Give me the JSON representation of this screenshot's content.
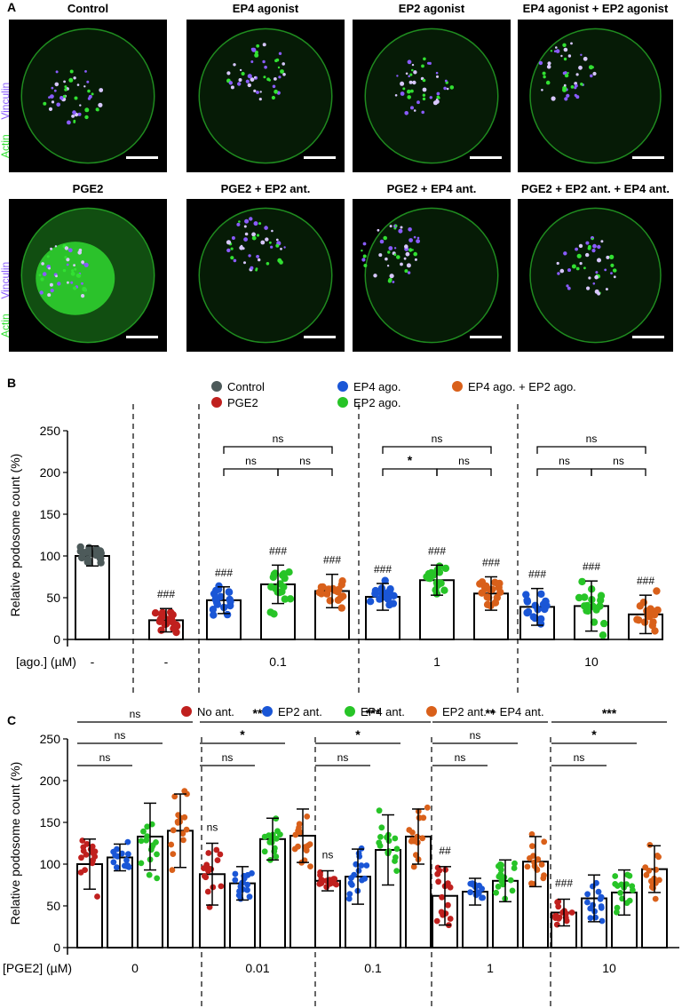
{
  "panelA": {
    "letter": "A",
    "stain_top": "Vinculin",
    "stain_bottom": "Actin",
    "row1": [
      "Control",
      "EP4 agonist",
      "EP2 agonist",
      "EP4 agonist + EP2 agonist"
    ],
    "row2": [
      "PGE2",
      "PGE2 + EP2 ant.",
      "PGE2 + EP4 ant.",
      "PGE2 + EP2 ant. + EP4 ant."
    ],
    "colors": {
      "vinculin": "#8a5cff",
      "actin": "#32e032"
    }
  },
  "chart_data": [
    {
      "panel": "B",
      "type": "bar",
      "ylabel": "Relative podosome count (%)",
      "xlabel": "[ago.] (µM)",
      "ylim": [
        0,
        250
      ],
      "yticks": [
        0,
        50,
        100,
        150,
        200,
        250
      ],
      "legend": [
        {
          "name": "Control",
          "color": "#4d5a5a"
        },
        {
          "name": "PGE2",
          "color": "#c0201e"
        },
        {
          "name": "EP4 ago.",
          "color": "#1a56d6"
        },
        {
          "name": "EP2 ago.",
          "color": "#27c427"
        },
        {
          "name": "EP4 ago. + EP2 ago.",
          "color": "#d9601a"
        }
      ],
      "groups": [
        {
          "label": "-",
          "bars": [
            {
              "series": "Control",
              "mean": 100,
              "sd": 12,
              "sig": ""
            }
          ]
        },
        {
          "label": "-",
          "bars": [
            {
              "series": "PGE2",
              "mean": 23,
              "sd": 14,
              "sig": "###"
            }
          ]
        },
        {
          "label": "0.1",
          "bars": [
            {
              "series": "EP4 ago.",
              "mean": 47,
              "sd": 16,
              "sig": "###"
            },
            {
              "series": "EP2 ago.",
              "mean": 66,
              "sd": 23,
              "sig": "###"
            },
            {
              "series": "EP4 ago. + EP2 ago.",
              "mean": 58,
              "sd": 20,
              "sig": "###"
            }
          ],
          "brackets": [
            [
              "ns",
              0,
              1
            ],
            [
              "ns",
              1,
              2
            ],
            [
              "ns",
              0,
              2
            ]
          ]
        },
        {
          "label": "1",
          "bars": [
            {
              "series": "EP4 ago.",
              "mean": 51,
              "sd": 16,
              "sig": "###"
            },
            {
              "series": "EP2 ago.",
              "mean": 71,
              "sd": 18,
              "sig": "###"
            },
            {
              "series": "EP4 ago. + EP2 ago.",
              "mean": 55,
              "sd": 20,
              "sig": "###"
            }
          ],
          "brackets": [
            [
              "*",
              0,
              1
            ],
            [
              "ns",
              1,
              2
            ],
            [
              "ns",
              0,
              2
            ]
          ]
        },
        {
          "label": "10",
          "bars": [
            {
              "series": "EP4 ago.",
              "mean": 39,
              "sd": 22,
              "sig": "###"
            },
            {
              "series": "EP2 ago.",
              "mean": 40,
              "sd": 30,
              "sig": "###"
            },
            {
              "series": "EP4 ago. + EP2 ago.",
              "mean": 30,
              "sd": 23,
              "sig": "###"
            }
          ],
          "brackets": [
            [
              "ns",
              0,
              1
            ],
            [
              "ns",
              1,
              2
            ],
            [
              "ns",
              0,
              2
            ]
          ]
        }
      ]
    },
    {
      "panel": "C",
      "type": "bar",
      "ylabel": "Relative podosome count (%)",
      "xlabel": "[PGE2] (µM)",
      "ylim": [
        0,
        250
      ],
      "yticks": [
        0,
        50,
        100,
        150,
        200,
        250
      ],
      "legend": [
        {
          "name": "No ant.",
          "color": "#c0201e"
        },
        {
          "name": "EP2 ant.",
          "color": "#1a56d6"
        },
        {
          "name": "EP4 ant.",
          "color": "#27c427"
        },
        {
          "name": "EP2 ant. + EP4 ant.",
          "color": "#d9601a"
        }
      ],
      "groups": [
        {
          "label": "0",
          "bars": [
            {
              "series": "No ant.",
              "mean": 100,
              "sd": 30,
              "sig": ""
            },
            {
              "series": "EP2 ant.",
              "mean": 108,
              "sd": 16,
              "sig": ""
            },
            {
              "series": "EP4 ant.",
              "mean": 133,
              "sd": 40,
              "sig": ""
            },
            {
              "series": "EP2 ant. + EP4 ant.",
              "mean": 140,
              "sd": 44,
              "sig": ""
            }
          ],
          "brackets": [
            [
              "ns",
              0,
              1
            ],
            [
              "ns",
              0,
              2
            ],
            [
              "ns",
              0,
              3
            ]
          ]
        },
        {
          "label": "0.01",
          "bars": [
            {
              "series": "No ant.",
              "mean": 88,
              "sd": 37,
              "sig": "ns"
            },
            {
              "series": "EP2 ant.",
              "mean": 77,
              "sd": 20,
              "sig": ""
            },
            {
              "series": "EP4 ant.",
              "mean": 130,
              "sd": 25,
              "sig": ""
            },
            {
              "series": "EP2 ant. + EP4 ant.",
              "mean": 134,
              "sd": 32,
              "sig": ""
            }
          ],
          "brackets": [
            [
              "ns",
              0,
              1
            ],
            [
              "*",
              0,
              2
            ],
            [
              "**",
              0,
              3
            ]
          ]
        },
        {
          "label": "0.1",
          "bars": [
            {
              "series": "No ant.",
              "mean": 80,
              "sd": 12,
              "sig": "ns"
            },
            {
              "series": "EP2 ant.",
              "mean": 85,
              "sd": 33,
              "sig": ""
            },
            {
              "series": "EP4 ant.",
              "mean": 117,
              "sd": 42,
              "sig": ""
            },
            {
              "series": "EP2 ant. + EP4 ant.",
              "mean": 133,
              "sd": 33,
              "sig": ""
            }
          ],
          "brackets": [
            [
              "ns",
              0,
              1
            ],
            [
              "*",
              0,
              2
            ],
            [
              "***",
              0,
              3
            ]
          ]
        },
        {
          "label": "1",
          "bars": [
            {
              "series": "No ant.",
              "mean": 62,
              "sd": 35,
              "sig": "##"
            },
            {
              "series": "EP2 ant.",
              "mean": 67,
              "sd": 16,
              "sig": ""
            },
            {
              "series": "EP4 ant.",
              "mean": 80,
              "sd": 25,
              "sig": ""
            },
            {
              "series": "EP2 ant. + EP4 ant.",
              "mean": 103,
              "sd": 30,
              "sig": ""
            }
          ],
          "brackets": [
            [
              "ns",
              0,
              1
            ],
            [
              "ns",
              0,
              2
            ],
            [
              "**",
              0,
              3
            ]
          ]
        },
        {
          "label": "10",
          "bars": [
            {
              "series": "No ant.",
              "mean": 42,
              "sd": 16,
              "sig": "###"
            },
            {
              "series": "EP2 ant.",
              "mean": 59,
              "sd": 28,
              "sig": ""
            },
            {
              "series": "EP4 ant.",
              "mean": 66,
              "sd": 27,
              "sig": ""
            },
            {
              "series": "EP2 ant. + EP4 ant.",
              "mean": 94,
              "sd": 28,
              "sig": ""
            }
          ],
          "brackets": [
            [
              "ns",
              0,
              1
            ],
            [
              "*",
              0,
              2
            ],
            [
              "***",
              0,
              3
            ]
          ]
        }
      ]
    }
  ]
}
